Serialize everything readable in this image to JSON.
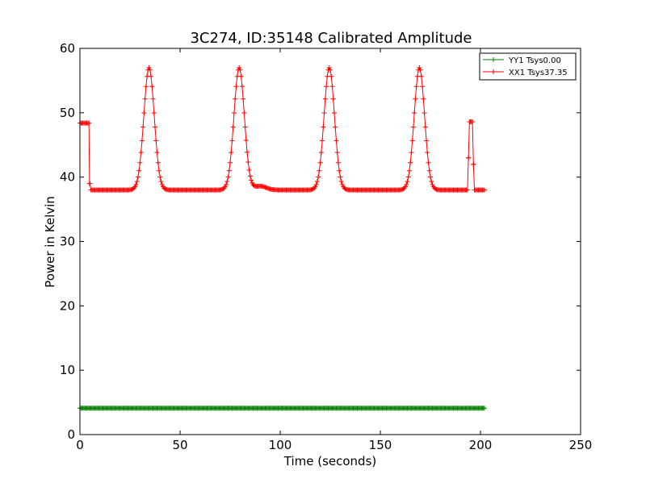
{
  "chart_data": {
    "type": "line",
    "title": "3C274, ID:35148 Calibrated Amplitude",
    "xlabel": "Time (seconds)",
    "ylabel": "Power in Kelvin",
    "xlim": [
      0,
      250
    ],
    "ylim": [
      0,
      60
    ],
    "xticks": [
      0,
      50,
      100,
      150,
      200,
      250
    ],
    "yticks": [
      0,
      10,
      20,
      30,
      40,
      50,
      60
    ],
    "grid": false,
    "legend_position": "top-right",
    "series": [
      {
        "name": "YY1 Tsys0.00",
        "color": "#008000",
        "marker": "+",
        "x_start": 0,
        "x_end": 202,
        "x_step": 0.5,
        "baseline": 4.1,
        "segments": []
      },
      {
        "name": "XX1 Tsys37.35",
        "color": "#ff0000",
        "marker": "+",
        "x_start": 0,
        "x_end": 202,
        "x_step": 0.5,
        "baseline": 38.0,
        "segments": [
          {
            "from": 0,
            "to": 4.6,
            "value": 48.4
          },
          {
            "from": 194.5,
            "to": 196.3,
            "value": 48.6
          }
        ],
        "peaks": [
          {
            "center": 34.5,
            "height": 57.0,
            "width": 2.6
          },
          {
            "center": 79.5,
            "height": 57.0,
            "width": 2.6
          },
          {
            "center": 124.5,
            "height": 57.0,
            "width": 2.6
          },
          {
            "center": 169.5,
            "height": 57.0,
            "width": 2.6
          },
          {
            "center": 90,
            "height": 38.6,
            "width": 3.0
          }
        ],
        "transitions": [
          {
            "x": 4.8,
            "value": 39.0
          },
          {
            "x": 194.0,
            "value": 43.0
          },
          {
            "x": 196.5,
            "value": 42.0
          }
        ]
      }
    ]
  }
}
